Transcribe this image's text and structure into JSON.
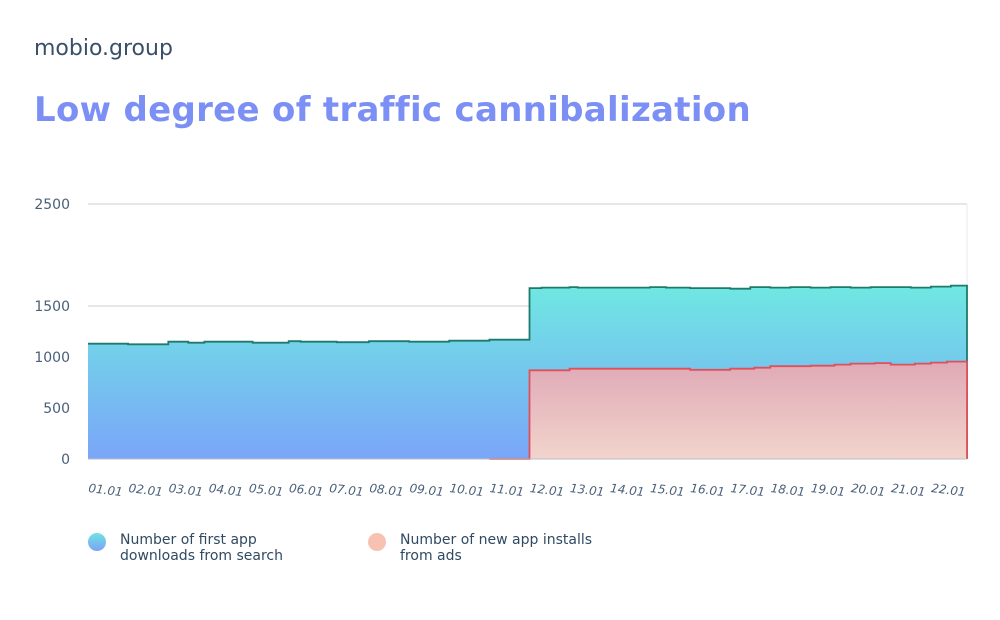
{
  "brand": "mobio.group",
  "title": "Low degree of traffic cannibalization",
  "legend": {
    "search_label": "Number of first app downloads from search",
    "ads_label": "Number of new app installs from ads"
  },
  "colors": {
    "search_line": "#1f7a6b",
    "ads_line": "#e0505a",
    "grid": "#c9ced6",
    "title": "#7b8ff5"
  },
  "chart_data": {
    "type": "area",
    "step": true,
    "title": "Low degree of traffic cannibalization",
    "ylim": [
      0,
      2500
    ],
    "yticks": [
      0,
      500,
      1000,
      1500,
      2500
    ],
    "categories": [
      "01.01",
      "02.01",
      "03.01",
      "04.01",
      "05.01",
      "06.01",
      "07.01",
      "08.01",
      "09.01",
      "10.01",
      "11.01",
      "12.01",
      "13.01",
      "14.01",
      "15.01",
      "16.01",
      "17.01",
      "18.01",
      "19.01",
      "20.01",
      "21.01",
      "22.01"
    ],
    "grid": true,
    "legend_position": "bottom",
    "series": [
      {
        "name": "Number of first app downloads from search",
        "x": [
          1.0,
          1.9,
          2.0,
          2.9,
          3.0,
          3.1,
          3.5,
          3.6,
          3.9,
          4.0,
          5.0,
          5.1,
          5.2,
          6.0,
          6.1,
          6.3,
          7.0,
          7.2,
          7.5,
          8.0,
          8.1,
          9.0,
          9.1,
          10.0,
          10.1,
          11.0,
          12.0,
          12.3,
          13.0,
          13.2,
          14.0,
          14.6,
          15.0,
          15.4,
          15.8,
          16.0,
          17.0,
          17.5,
          18.0,
          18.5,
          19.0,
          19.5,
          20.0,
          20.5,
          21.0,
          21.5,
          22.0,
          22.3,
          22.5
        ],
        "y": [
          1130,
          1130,
          1125,
          1125,
          1150,
          1150,
          1140,
          1140,
          1150,
          1150,
          1150,
          1140,
          1140,
          1155,
          1155,
          1150,
          1150,
          1145,
          1145,
          1155,
          1155,
          1150,
          1150,
          1160,
          1160,
          1170,
          1675,
          1680,
          1685,
          1680,
          1680,
          1680,
          1685,
          1680,
          1680,
          1675,
          1670,
          1685,
          1680,
          1685,
          1680,
          1685,
          1680,
          1685,
          1685,
          1680,
          1690,
          1690,
          1700
        ],
        "end": 22.9
      },
      {
        "name": "Number of new app installs from ads",
        "x": [
          11.0,
          12.0,
          12.3,
          13.0,
          14.0,
          15.0,
          16.0,
          17.0,
          17.6,
          18.0,
          19.0,
          19.6,
          20.0,
          20.6,
          21.0,
          21.6,
          22.0,
          22.4
        ],
        "y": [
          0,
          870,
          870,
          885,
          885,
          885,
          875,
          885,
          895,
          910,
          915,
          925,
          935,
          940,
          925,
          935,
          945,
          955
        ],
        "end": 22.9
      }
    ]
  }
}
